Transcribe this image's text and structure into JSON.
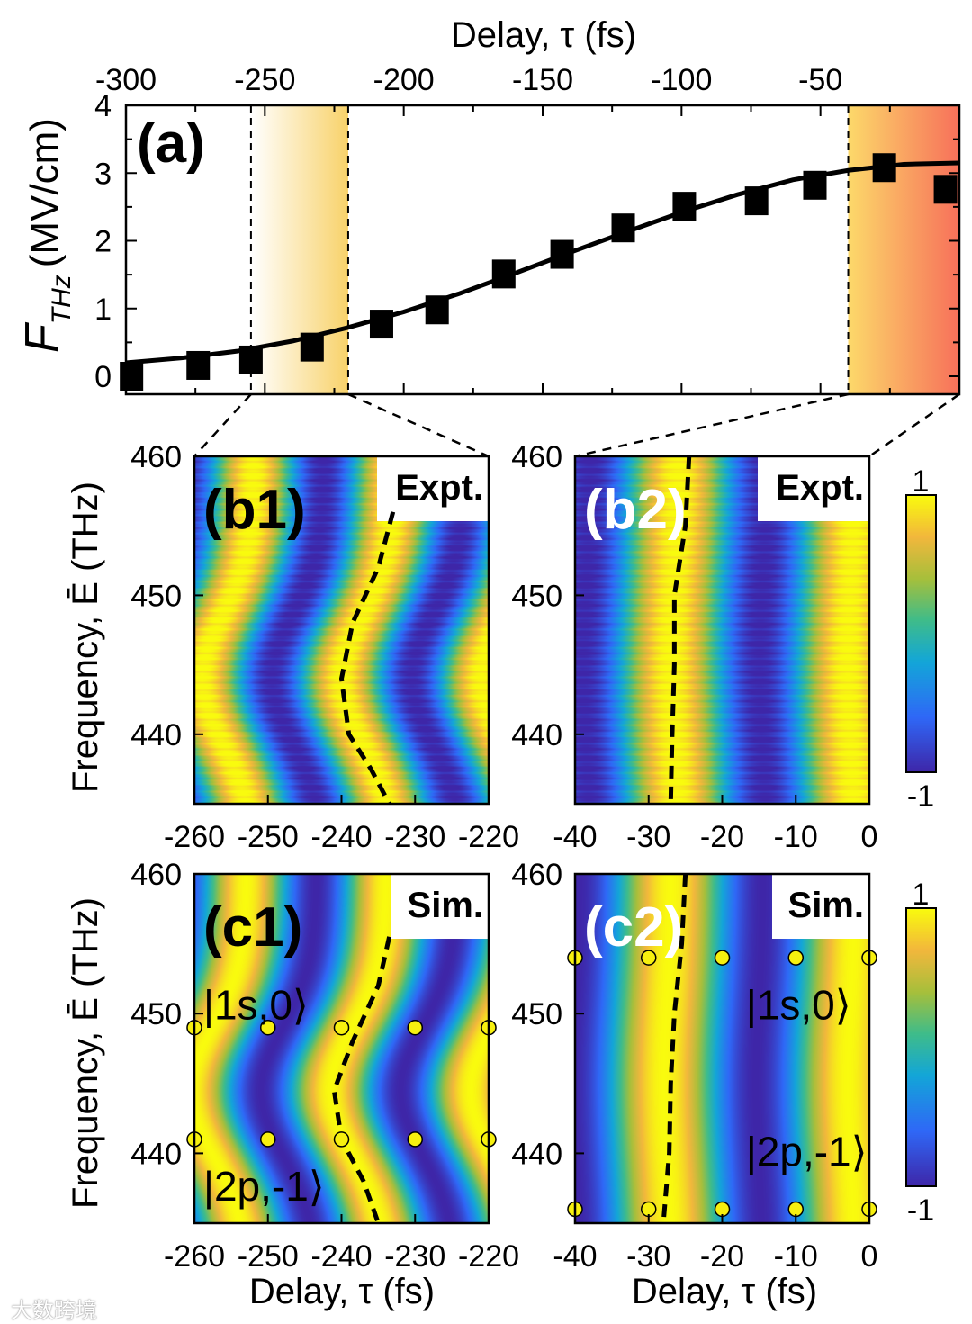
{
  "watermark": "大数跨境",
  "chart_data": {
    "panel_a": {
      "type": "scatter",
      "label": "(a)",
      "xlabel_top": "Delay, τ (fs)",
      "ylabel": "F",
      "ylabel_sub": "THz",
      "ylabel_unit": "(MV/cm)",
      "xlim": [
        -300,
        0
      ],
      "ylim": [
        -0.27,
        4
      ],
      "x_ticks": [
        "-300",
        "-250",
        "-200",
        "-150",
        "-100",
        "-50"
      ],
      "x_tick_values": [
        -300,
        -250,
        -200,
        -150,
        -100,
        -50
      ],
      "y_ticks": [
        "0",
        "1",
        "2",
        "3",
        "4"
      ],
      "y_tick_values": [
        0,
        1,
        2,
        3,
        4
      ],
      "points": [
        [
          -298,
          0.0
        ],
        [
          -274,
          0.16
        ],
        [
          -255,
          0.24
        ],
        [
          -233,
          0.43
        ],
        [
          -208,
          0.77
        ],
        [
          -188,
          0.98
        ],
        [
          -164,
          1.51
        ],
        [
          -143,
          1.8
        ],
        [
          -121,
          2.19
        ],
        [
          -99,
          2.51
        ],
        [
          -73,
          2.59
        ],
        [
          -52,
          2.82
        ],
        [
          -27,
          3.08
        ],
        [
          -5,
          2.76
        ]
      ],
      "fit": [
        [
          -300,
          0.2
        ],
        [
          -280,
          0.27
        ],
        [
          -260,
          0.37
        ],
        [
          -240,
          0.52
        ],
        [
          -220,
          0.72
        ],
        [
          -200,
          0.95
        ],
        [
          -180,
          1.22
        ],
        [
          -160,
          1.52
        ],
        [
          -140,
          1.83
        ],
        [
          -120,
          2.13
        ],
        [
          -100,
          2.42
        ],
        [
          -80,
          2.68
        ],
        [
          -60,
          2.9
        ],
        [
          -40,
          3.04
        ],
        [
          -20,
          3.13
        ],
        [
          0,
          3.15
        ]
      ],
      "highlight_windows": [
        [
          -255,
          -220
        ],
        [
          -40,
          0
        ]
      ],
      "colors": {
        "window1_start": "#ffffff",
        "window1_end": "#f8d26a",
        "window2_start": "#fcd96a",
        "window2_end": "#f7705a"
      }
    },
    "heatmaps": [
      {
        "type": "heatmap",
        "id": "b1",
        "label": "(b1)",
        "tag": "Expt.",
        "label_color": "#000000",
        "xlim": [
          -260,
          -220
        ],
        "ylim": [
          435,
          460
        ],
        "x_ticks": [
          "-260",
          "-250",
          "-240",
          "-230",
          "-220"
        ],
        "y_ticks": [
          "460",
          "450",
          "440"
        ],
        "y_tick_values": [
          460,
          450,
          440
        ],
        "period_fs": 19,
        "ref_delay": -233,
        "bend_fs": -7,
        "bend_center_thz": 444,
        "bend_width_thz": 6.5,
        "noise": true,
        "dashed": [
          [
            -233,
            456
          ],
          [
            -235,
            452
          ],
          [
            -238.5,
            448
          ],
          [
            -240,
            444
          ],
          [
            -239,
            440
          ],
          [
            -236,
            437.5
          ],
          [
            -233.5,
            435
          ]
        ]
      },
      {
        "type": "heatmap",
        "id": "b2",
        "label": "(b2)",
        "tag": "Expt.",
        "label_color": "#ffffff",
        "xlim": [
          -40,
          0
        ],
        "ylim": [
          435,
          460
        ],
        "x_ticks": [
          "-40",
          "-30",
          "-20",
          "-10",
          "0"
        ],
        "y_ticks": [
          "460",
          "450",
          "440"
        ],
        "y_tick_values": [
          460,
          450,
          440
        ],
        "period_fs": 24,
        "ref_delay": -26,
        "bend_fs": -1,
        "bend_center_thz": 445,
        "bend_width_thz": 8,
        "noise": true,
        "dashed": [
          [
            -24.5,
            460
          ],
          [
            -25,
            455
          ],
          [
            -26.5,
            450
          ],
          [
            -26.5,
            445
          ],
          [
            -26.8,
            440
          ],
          [
            -27,
            435
          ]
        ]
      },
      {
        "type": "heatmap",
        "id": "c1",
        "label": "(c1)",
        "tag": "Sim.",
        "label_color": "#000000",
        "xlim": [
          -260,
          -220
        ],
        "ylim": [
          435,
          460
        ],
        "x_ticks": [
          "-260",
          "-250",
          "-240",
          "-230",
          "-220"
        ],
        "y_ticks": [
          "460",
          "450",
          "440"
        ],
        "y_tick_values": [
          460,
          450,
          440
        ],
        "period_fs": 19,
        "ref_delay": -234,
        "bend_fs": -7.5,
        "bend_center_thz": 444.5,
        "bend_width_thz": 6.5,
        "noise": false,
        "dashed": [
          [
            -233.5,
            455.5
          ],
          [
            -235,
            452
          ],
          [
            -238.5,
            448
          ],
          [
            -241,
            444.5
          ],
          [
            -240,
            441
          ],
          [
            -237,
            438
          ],
          [
            -235,
            435
          ]
        ],
        "dots": [
          [
            -260,
            449
          ],
          [
            -250,
            449
          ],
          [
            -240,
            449
          ],
          [
            -230,
            449
          ],
          [
            -220,
            449
          ],
          [
            -260,
            441
          ],
          [
            -250,
            441
          ],
          [
            -240,
            441
          ],
          [
            -230,
            441
          ],
          [
            -220,
            441
          ]
        ],
        "kets": [
          {
            "text": "|1s,0⟩",
            "tau": -260,
            "E": 450.5
          },
          {
            "text": "|2p,-1⟩",
            "tau": -260,
            "E": 437.5
          }
        ]
      },
      {
        "type": "heatmap",
        "id": "c2",
        "label": "(c2)",
        "tag": "Sim.",
        "label_color": "#ffffff",
        "xlim": [
          -40,
          0
        ],
        "ylim": [
          435,
          460
        ],
        "x_ticks": [
          "-40",
          "-30",
          "-20",
          "-10",
          "0"
        ],
        "y_ticks": [
          "460",
          "450",
          "440"
        ],
        "y_tick_values": [
          460,
          450,
          440
        ],
        "period_fs": 25,
        "ref_delay": -27,
        "bend_fs": -1,
        "bend_center_thz": 445,
        "bend_width_thz": 8,
        "noise": false,
        "dashed": [
          [
            -25,
            460
          ],
          [
            -25.5,
            455
          ],
          [
            -26.5,
            450
          ],
          [
            -27,
            445
          ],
          [
            -27.2,
            440
          ],
          [
            -28,
            435
          ]
        ],
        "dots": [
          [
            -40,
            454
          ],
          [
            -30,
            454
          ],
          [
            -20,
            454
          ],
          [
            -10,
            454
          ],
          [
            0,
            454
          ],
          [
            -40,
            436
          ],
          [
            -30,
            436
          ],
          [
            -20,
            436
          ],
          [
            -10,
            436
          ],
          [
            0,
            436
          ]
        ],
        "kets": [
          {
            "text": "|1s,0⟩",
            "tau": -18,
            "E": 450.5
          },
          {
            "text": "|2p,-1⟩",
            "tau": -18,
            "E": 440
          }
        ]
      }
    ],
    "ylabel_freq": "Frequency, Ē (THz)",
    "xlabel_bottom": "Delay, τ (fs)",
    "colorbar": {
      "max_label": "1",
      "min_label": "-1",
      "range": [
        -1,
        1
      ],
      "colormap": [
        "#3e26a8",
        "#2f68f7",
        "#13a6d8",
        "#3fbc8a",
        "#a7bf3b",
        "#f2b73c",
        "#f9fb0e"
      ]
    },
    "dot_color": "#f7f00f"
  }
}
